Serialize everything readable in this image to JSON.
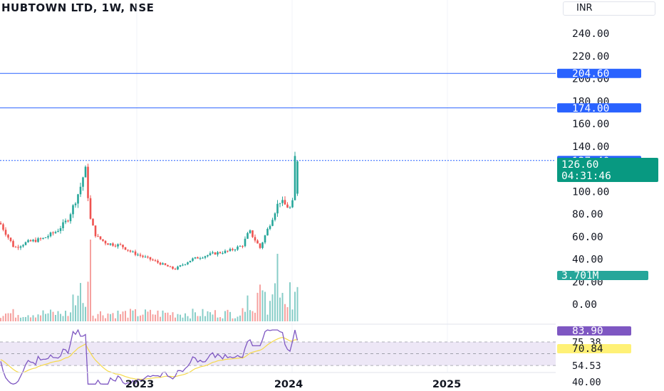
{
  "header": {
    "title": "HUBTOWN LTD, 1W, NSE",
    "currency": "INR"
  },
  "colors": {
    "up": "#26a69a",
    "down": "#ef5350",
    "hline": "#2962ff",
    "rsi": "#7e57c2",
    "rsi_ma": "#f5d94a",
    "price_label": "#089981",
    "vol_label": "#26a69a",
    "rsi_badge": "#7e57c2",
    "rsi_ma_badge": "#fff176",
    "band_fill": "#ede7f6"
  },
  "chart_data": {
    "type": "candlestick",
    "x_axis": {
      "tick_labels": [
        "2023",
        "2024",
        "2025"
      ]
    },
    "price_axis": {
      "ylim": [
        0,
        250
      ],
      "tick_labels": [
        "240.00",
        "220.00",
        "200.00",
        "180.00",
        "160.00",
        "140.00",
        "100.00",
        "80.00",
        "60.00",
        "40.00",
        "20.00",
        "0.00"
      ]
    },
    "horizontal_lines": [
      {
        "price": 204.6,
        "label": "204.60"
      },
      {
        "price": 174.0,
        "label": "174.00"
      },
      {
        "price": 127.4,
        "label": "127.40"
      }
    ],
    "last_price": {
      "value": 126.6,
      "label": "126.60",
      "countdown": "04:31:46"
    },
    "volume_label": "3.701M",
    "rsi": {
      "ylim": [
        30,
        95
      ],
      "value_label": "83.90",
      "ma_label": "70.84",
      "band_upper": 75.38,
      "band_lower": 54.53,
      "tick_labels": [
        "75.38",
        "54.53",
        "40.00"
      ]
    }
  }
}
